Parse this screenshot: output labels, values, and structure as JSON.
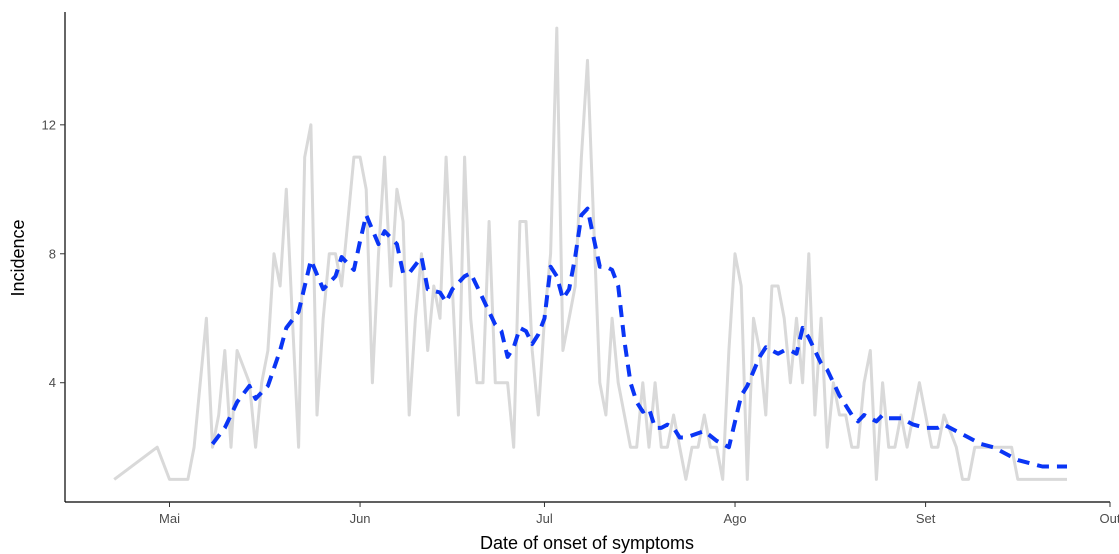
{
  "chart_data": {
    "type": "line",
    "title": "",
    "xlabel": "Date of onset of symptoms",
    "ylabel": "Incidence",
    "xlim": [
      "2020-04-14",
      "2020-10-01"
    ],
    "ylim": [
      0.3,
      15.5
    ],
    "x_ticks": [
      {
        "date": "2020-05-01",
        "label": "Mai"
      },
      {
        "date": "2020-06-01",
        "label": "Jun"
      },
      {
        "date": "2020-07-01",
        "label": "Jul"
      },
      {
        "date": "2020-08-01",
        "label": "Ago"
      },
      {
        "date": "2020-09-01",
        "label": "Set"
      },
      {
        "date": "2020-10-01",
        "label": "Out"
      }
    ],
    "y_ticks": [
      4,
      8,
      12
    ],
    "grid": false,
    "series": [
      {
        "style": "solid",
        "color": "#d9d9d9",
        "points": [
          [
            "2020-04-22",
            1
          ],
          [
            "2020-04-29",
            2
          ],
          [
            "2020-05-01",
            1
          ],
          [
            "2020-05-04",
            1
          ],
          [
            "2020-05-05",
            2
          ],
          [
            "2020-05-07",
            6
          ],
          [
            "2020-05-08",
            2
          ],
          [
            "2020-05-09",
            3
          ],
          [
            "2020-05-10",
            5
          ],
          [
            "2020-05-11",
            2
          ],
          [
            "2020-05-12",
            5
          ],
          [
            "2020-05-14",
            4
          ],
          [
            "2020-05-15",
            2
          ],
          [
            "2020-05-16",
            4
          ],
          [
            "2020-05-17",
            5
          ],
          [
            "2020-05-18",
            8
          ],
          [
            "2020-05-19",
            7
          ],
          [
            "2020-05-20",
            10
          ],
          [
            "2020-05-21",
            6
          ],
          [
            "2020-05-22",
            2
          ],
          [
            "2020-05-23",
            11
          ],
          [
            "2020-05-24",
            12
          ],
          [
            "2020-05-25",
            3
          ],
          [
            "2020-05-26",
            6
          ],
          [
            "2020-05-27",
            8
          ],
          [
            "2020-05-28",
            8
          ],
          [
            "2020-05-29",
            7
          ],
          [
            "2020-05-30",
            9
          ],
          [
            "2020-05-31",
            11
          ],
          [
            "2020-06-01",
            11
          ],
          [
            "2020-06-02",
            10
          ],
          [
            "2020-06-03",
            4
          ],
          [
            "2020-06-04",
            8
          ],
          [
            "2020-06-05",
            11
          ],
          [
            "2020-06-06",
            7
          ],
          [
            "2020-06-07",
            10
          ],
          [
            "2020-06-08",
            9
          ],
          [
            "2020-06-09",
            3
          ],
          [
            "2020-06-10",
            6
          ],
          [
            "2020-06-11",
            8
          ],
          [
            "2020-06-12",
            5
          ],
          [
            "2020-06-13",
            7
          ],
          [
            "2020-06-14",
            6
          ],
          [
            "2020-06-15",
            11
          ],
          [
            "2020-06-16",
            7
          ],
          [
            "2020-06-17",
            3
          ],
          [
            "2020-06-18",
            11
          ],
          [
            "2020-06-19",
            6
          ],
          [
            "2020-06-20",
            4
          ],
          [
            "2020-06-21",
            4
          ],
          [
            "2020-06-22",
            9
          ],
          [
            "2020-06-23",
            4
          ],
          [
            "2020-06-24",
            4
          ],
          [
            "2020-06-25",
            4
          ],
          [
            "2020-06-26",
            2
          ],
          [
            "2020-06-27",
            9
          ],
          [
            "2020-06-28",
            9
          ],
          [
            "2020-06-29",
            5
          ],
          [
            "2020-06-30",
            3
          ],
          [
            "2020-07-01",
            6
          ],
          [
            "2020-07-02",
            8
          ],
          [
            "2020-07-03",
            15
          ],
          [
            "2020-07-04",
            5
          ],
          [
            "2020-07-05",
            6
          ],
          [
            "2020-07-06",
            7
          ],
          [
            "2020-07-07",
            11
          ],
          [
            "2020-07-08",
            14
          ],
          [
            "2020-07-09",
            9
          ],
          [
            "2020-07-10",
            4
          ],
          [
            "2020-07-11",
            3
          ],
          [
            "2020-07-12",
            6
          ],
          [
            "2020-07-13",
            4
          ],
          [
            "2020-07-14",
            3
          ],
          [
            "2020-07-15",
            2
          ],
          [
            "2020-07-16",
            2
          ],
          [
            "2020-07-17",
            4
          ],
          [
            "2020-07-18",
            2
          ],
          [
            "2020-07-19",
            4
          ],
          [
            "2020-07-20",
            2
          ],
          [
            "2020-07-21",
            2
          ],
          [
            "2020-07-22",
            3
          ],
          [
            "2020-07-23",
            2
          ],
          [
            "2020-07-24",
            1
          ],
          [
            "2020-07-25",
            2
          ],
          [
            "2020-07-26",
            2
          ],
          [
            "2020-07-27",
            3
          ],
          [
            "2020-07-28",
            2
          ],
          [
            "2020-07-29",
            2
          ],
          [
            "2020-07-30",
            1
          ],
          [
            "2020-07-31",
            5
          ],
          [
            "2020-08-01",
            8
          ],
          [
            "2020-08-02",
            7
          ],
          [
            "2020-08-03",
            1
          ],
          [
            "2020-08-04",
            6
          ],
          [
            "2020-08-05",
            5
          ],
          [
            "2020-08-06",
            3
          ],
          [
            "2020-08-07",
            7
          ],
          [
            "2020-08-08",
            7
          ],
          [
            "2020-08-09",
            6
          ],
          [
            "2020-08-10",
            4
          ],
          [
            "2020-08-11",
            6
          ],
          [
            "2020-08-12",
            4
          ],
          [
            "2020-08-13",
            8
          ],
          [
            "2020-08-14",
            3
          ],
          [
            "2020-08-15",
            6
          ],
          [
            "2020-08-16",
            2
          ],
          [
            "2020-08-17",
            4
          ],
          [
            "2020-08-18",
            3
          ],
          [
            "2020-08-19",
            3
          ],
          [
            "2020-08-20",
            2
          ],
          [
            "2020-08-21",
            2
          ],
          [
            "2020-08-22",
            4
          ],
          [
            "2020-08-23",
            5
          ],
          [
            "2020-08-24",
            1
          ],
          [
            "2020-08-25",
            4
          ],
          [
            "2020-08-26",
            2
          ],
          [
            "2020-08-27",
            2
          ],
          [
            "2020-08-28",
            3
          ],
          [
            "2020-08-29",
            2
          ],
          [
            "2020-08-30",
            3
          ],
          [
            "2020-08-31",
            4
          ],
          [
            "2020-09-01",
            3
          ],
          [
            "2020-09-02",
            2
          ],
          [
            "2020-09-03",
            2
          ],
          [
            "2020-09-04",
            3
          ],
          [
            "2020-09-06",
            2
          ],
          [
            "2020-09-07",
            1
          ],
          [
            "2020-09-08",
            1
          ],
          [
            "2020-09-09",
            2
          ],
          [
            "2020-09-12",
            2
          ],
          [
            "2020-09-15",
            2
          ],
          [
            "2020-09-16",
            1
          ],
          [
            "2020-09-24",
            1
          ]
        ]
      },
      {
        "style": "dashed",
        "color": "#0a35f5",
        "points": [
          [
            "2020-05-08",
            2.1
          ],
          [
            "2020-05-10",
            2.6
          ],
          [
            "2020-05-12",
            3.4
          ],
          [
            "2020-05-14",
            3.9
          ],
          [
            "2020-05-15",
            3.5
          ],
          [
            "2020-05-17",
            3.9
          ],
          [
            "2020-05-19",
            5.0
          ],
          [
            "2020-05-20",
            5.7
          ],
          [
            "2020-05-22",
            6.2
          ],
          [
            "2020-05-24",
            7.8
          ],
          [
            "2020-05-26",
            6.9
          ],
          [
            "2020-05-28",
            7.3
          ],
          [
            "2020-05-29",
            7.9
          ],
          [
            "2020-05-31",
            7.5
          ],
          [
            "2020-06-01",
            8.4
          ],
          [
            "2020-06-02",
            9.2
          ],
          [
            "2020-06-04",
            8.3
          ],
          [
            "2020-06-05",
            8.7
          ],
          [
            "2020-06-07",
            8.3
          ],
          [
            "2020-06-08",
            7.4
          ],
          [
            "2020-06-09",
            7.4
          ],
          [
            "2020-06-11",
            7.9
          ],
          [
            "2020-06-12",
            6.9
          ],
          [
            "2020-06-14",
            6.8
          ],
          [
            "2020-06-15",
            6.5
          ],
          [
            "2020-06-16",
            6.9
          ],
          [
            "2020-06-17",
            7.1
          ],
          [
            "2020-06-18",
            7.3
          ],
          [
            "2020-06-19",
            7.4
          ],
          [
            "2020-06-21",
            6.6
          ],
          [
            "2020-06-22",
            6.2
          ],
          [
            "2020-06-23",
            5.8
          ],
          [
            "2020-06-24",
            5.6
          ],
          [
            "2020-06-25",
            4.8
          ],
          [
            "2020-06-26",
            5.1
          ],
          [
            "2020-06-27",
            5.7
          ],
          [
            "2020-06-28",
            5.6
          ],
          [
            "2020-06-29",
            5.2
          ],
          [
            "2020-06-30",
            5.5
          ],
          [
            "2020-07-01",
            6.0
          ],
          [
            "2020-07-02",
            7.6
          ],
          [
            "2020-07-03",
            7.3
          ],
          [
            "2020-07-04",
            6.6
          ],
          [
            "2020-07-05",
            6.9
          ],
          [
            "2020-07-06",
            7.9
          ],
          [
            "2020-07-07",
            9.2
          ],
          [
            "2020-07-08",
            9.4
          ],
          [
            "2020-07-09",
            8.5
          ],
          [
            "2020-07-10",
            7.6
          ],
          [
            "2020-07-11",
            7.6
          ],
          [
            "2020-07-12",
            7.5
          ],
          [
            "2020-07-13",
            7.0
          ],
          [
            "2020-07-14",
            5.3
          ],
          [
            "2020-07-15",
            4.0
          ],
          [
            "2020-07-16",
            3.4
          ],
          [
            "2020-07-17",
            3.1
          ],
          [
            "2020-07-18",
            3.2
          ],
          [
            "2020-07-19",
            2.6
          ],
          [
            "2020-07-20",
            2.6
          ],
          [
            "2020-07-21",
            2.7
          ],
          [
            "2020-07-22",
            2.6
          ],
          [
            "2020-07-23",
            2.3
          ],
          [
            "2020-07-24",
            2.3
          ],
          [
            "2020-07-27",
            2.5
          ],
          [
            "2020-07-29",
            2.2
          ],
          [
            "2020-07-31",
            2.0
          ],
          [
            "2020-08-02",
            3.6
          ],
          [
            "2020-08-03",
            3.9
          ],
          [
            "2020-08-05",
            4.8
          ],
          [
            "2020-08-06",
            5.1
          ],
          [
            "2020-08-07",
            5.0
          ],
          [
            "2020-08-08",
            4.9
          ],
          [
            "2020-08-09",
            5.0
          ],
          [
            "2020-08-10",
            5.0
          ],
          [
            "2020-08-11",
            4.9
          ],
          [
            "2020-08-12",
            5.7
          ],
          [
            "2020-08-13",
            5.4
          ],
          [
            "2020-08-14",
            5.0
          ],
          [
            "2020-08-15",
            4.6
          ],
          [
            "2020-08-16",
            4.4
          ],
          [
            "2020-08-17",
            4.0
          ],
          [
            "2020-08-18",
            3.6
          ],
          [
            "2020-08-19",
            3.3
          ],
          [
            "2020-08-20",
            3.0
          ],
          [
            "2020-08-21",
            2.8
          ],
          [
            "2020-08-22",
            3.0
          ],
          [
            "2020-08-23",
            2.9
          ],
          [
            "2020-08-24",
            2.8
          ],
          [
            "2020-08-25",
            3.0
          ],
          [
            "2020-08-26",
            2.9
          ],
          [
            "2020-08-28",
            2.9
          ],
          [
            "2020-08-30",
            2.7
          ],
          [
            "2020-09-01",
            2.6
          ],
          [
            "2020-09-03",
            2.6
          ],
          [
            "2020-09-04",
            2.7
          ],
          [
            "2020-09-06",
            2.5
          ],
          [
            "2020-09-08",
            2.3
          ],
          [
            "2020-09-10",
            2.1
          ],
          [
            "2020-09-12",
            2.0
          ],
          [
            "2020-09-14",
            1.8
          ],
          [
            "2020-09-16",
            1.6
          ],
          [
            "2020-09-18",
            1.5
          ],
          [
            "2020-09-20",
            1.4
          ],
          [
            "2020-09-24",
            1.4
          ]
        ]
      }
    ]
  }
}
